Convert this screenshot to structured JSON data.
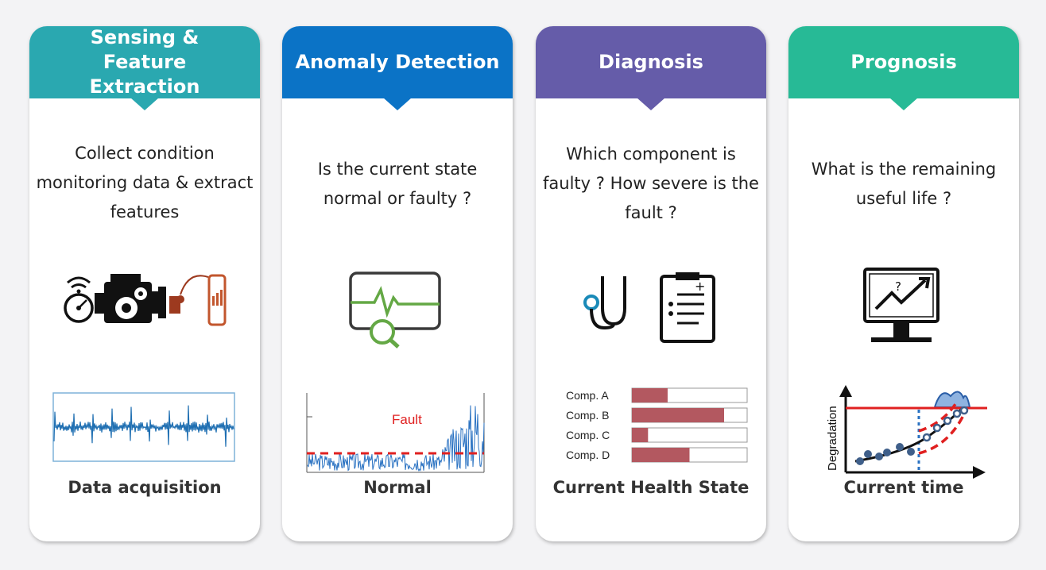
{
  "cards": [
    {
      "header": "Sensing & Feature Extraction",
      "color": "#2aa8b0",
      "question": "Collect condition monitoring data & extract features",
      "caption": "Data acquisition",
      "icons": [
        "wireless-gauge-icon",
        "engine-gear-icon",
        "sensor-phone-icon"
      ]
    },
    {
      "header": "Anomaly Detection",
      "color": "#0b73c6",
      "question": "Is the current state normal or faulty ?",
      "caption": "Normal",
      "icons": [
        "monitor-signal-search-icon"
      ],
      "chart_label": "Fault"
    },
    {
      "header": "Diagnosis",
      "color": "#655ca9",
      "question": "Which component is faulty ? How severe is the fault ?",
      "caption": "Current Health State",
      "icons": [
        "stethoscope-icon",
        "clipboard-icon"
      ]
    },
    {
      "header": "Prognosis",
      "color": "#27ba96",
      "question": "What is the remaining useful life ?",
      "caption": "Current time",
      "icons": [
        "monitor-trend-icon"
      ],
      "ylabel": "Degradation"
    }
  ],
  "chart_data": [
    {
      "type": "bar",
      "categories": [
        "Comp. A",
        "Comp. B",
        "Comp. C",
        "Comp. D"
      ],
      "values": [
        0.31,
        0.8,
        0.14,
        0.5
      ],
      "ylim": [
        0,
        1
      ],
      "color": "#b35860"
    }
  ]
}
